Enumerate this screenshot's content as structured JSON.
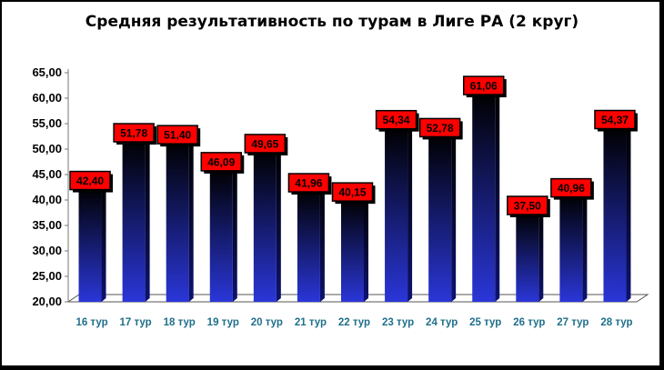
{
  "colors": {
    "bar_top": "#000000",
    "bar_bottom": "#2a36d8",
    "label_fill": "#ff0000",
    "category_text": "#1f6f8b"
  },
  "chart_data": {
    "type": "bar",
    "title": "Средняя результативность по турам в Лиге РА (2 круг)",
    "xlabel": "",
    "ylabel": "",
    "categories": [
      "16 тур",
      "17 тур",
      "18 тур",
      "19 тур",
      "20 тур",
      "21 тур",
      "22 тур",
      "23 тур",
      "24 тур",
      "25 тур",
      "26 тур",
      "27 тур",
      "28 тур"
    ],
    "values": [
      42.4,
      51.78,
      51.4,
      46.09,
      49.65,
      41.96,
      40.15,
      54.34,
      52.78,
      61.06,
      37.5,
      40.96,
      54.37
    ],
    "value_labels": [
      "42,40",
      "51,78",
      "51,40",
      "46,09",
      "49,65",
      "41,96",
      "40,15",
      "54,34",
      "52,78",
      "61,06",
      "37,50",
      "40,96",
      "54,37"
    ],
    "ylim": [
      20,
      65
    ],
    "yticks": [
      "20,00",
      "25,00",
      "30,00",
      "35,00",
      "40,00",
      "45,00",
      "50,00",
      "55,00",
      "60,00",
      "65,00"
    ],
    "grid": false,
    "legend": "none"
  }
}
